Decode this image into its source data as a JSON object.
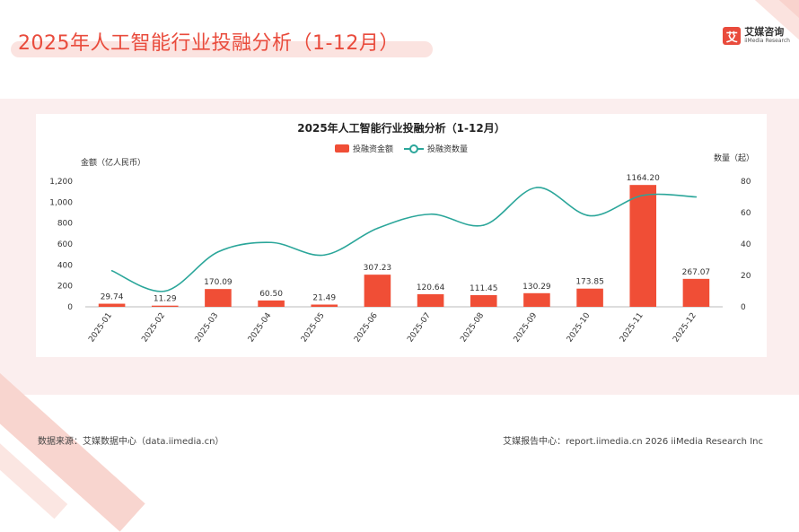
{
  "page": {
    "title": "2025年人工智能行业投融分析（1-12月）"
  },
  "logo": {
    "mark": "艾",
    "name": "艾媒咨询",
    "sub": "iiMedia Research"
  },
  "footer": {
    "source": "数据来源：艾媒数据中心（data.iimedia.cn）",
    "right": "艾媒报告中心：report.iimedia.cn   2026 iiMedia Research Inc"
  },
  "colors": {
    "bar": "#f04e36",
    "line": "#2ba69a",
    "title": "#e94b3c"
  },
  "chart_data": {
    "type": "bar",
    "title": "2025年人工智能行业投融分析（1-12月）",
    "categories": [
      "2025-01",
      "2025-02",
      "2025-03",
      "2025-04",
      "2025-05",
      "2025-06",
      "2025-07",
      "2025-08",
      "2025-09",
      "2025-10",
      "2025-11",
      "2025-12"
    ],
    "series": [
      {
        "name": "投融资金额",
        "type": "bar",
        "axis": "left",
        "values": [
          29.74,
          11.29,
          170.09,
          60.5,
          21.49,
          307.23,
          120.64,
          111.45,
          130.29,
          173.85,
          1164.2,
          267.07
        ],
        "labels": [
          "29.74",
          "11.29",
          "170.09",
          "60.50",
          "21.49",
          "307.23",
          "120.64",
          "111.45",
          "130.29",
          "173.85",
          "1164.20",
          "267.07"
        ]
      },
      {
        "name": "投融资数量",
        "type": "line",
        "axis": "right",
        "values": [
          23,
          10,
          35,
          41,
          33,
          50,
          59,
          52,
          76,
          58,
          71,
          70
        ]
      }
    ],
    "ylabel": "金额（亿人民币）",
    "ylabel_right": "数量（起）",
    "ylim": [
      0,
      1200
    ],
    "yticks": [
      0,
      200,
      400,
      600,
      800,
      1000,
      1200
    ],
    "ytick_labels": [
      "0",
      "200",
      "400",
      "600",
      "800",
      "1,000",
      "1,200"
    ],
    "ylim_right": [
      0,
      80
    ],
    "yticks_right": [
      0,
      20,
      40,
      60,
      80
    ],
    "ytick_labels_right": [
      "0",
      "20",
      "40",
      "60",
      "80"
    ],
    "legend_position": "top-center",
    "grid": false
  }
}
